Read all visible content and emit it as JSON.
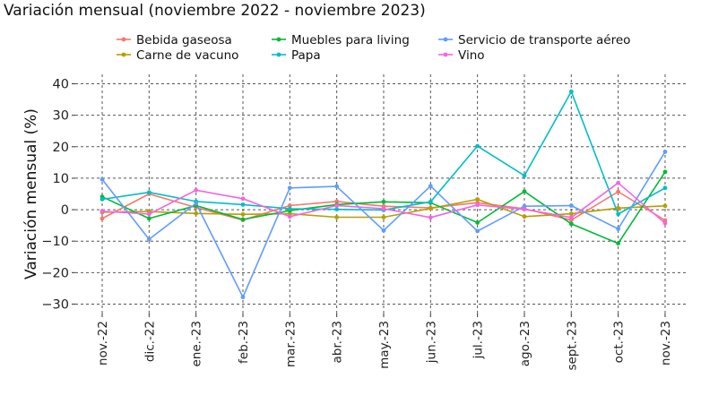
{
  "chart_data": {
    "type": "line",
    "title": "Variación mensual (noviembre 2022 - noviembre 2023)",
    "xlabel": "",
    "ylabel": "Variación mensual (%)",
    "ylim": [
      -33,
      43
    ],
    "yticks": [
      40,
      30,
      20,
      10,
      0,
      -10,
      -20,
      -30
    ],
    "ytick_labels": [
      "40",
      "30",
      "20",
      "10",
      "0",
      "−10",
      "−20",
      "−30"
    ],
    "grid": true,
    "legend_position": "top",
    "categories": [
      "nov.-22",
      "dic.-22",
      "ene.-23",
      "feb.-23",
      "mar.-23",
      "abr.-23",
      "may.-23",
      "jun.-23",
      "jul.-23",
      "ago.-23",
      "sept.-23",
      "oct.-23",
      "nov.-23"
    ],
    "series": [
      {
        "name": "Bebida gaseosa",
        "color": "#F8766D",
        "values": [
          -2.8,
          5.0,
          0.7,
          -3.3,
          1.3,
          2.6,
          1.1,
          0.6,
          2.2,
          0.3,
          -3.3,
          5.7,
          -3.4
        ]
      },
      {
        "name": "Carne de vacuno",
        "color": "#B79F00",
        "values": [
          -0.8,
          -0.6,
          -1.2,
          -1.5,
          -1.3,
          -2.4,
          -2.4,
          0.4,
          3.3,
          -2.2,
          -1.3,
          0.5,
          1.2
        ]
      },
      {
        "name": "Muebles para living",
        "color": "#00BA38",
        "values": [
          4.1,
          -2.8,
          1.3,
          -3.1,
          -0.3,
          1.6,
          2.5,
          2.2,
          -4.1,
          5.8,
          -4.5,
          -10.7,
          12.0
        ]
      },
      {
        "name": "Papa",
        "color": "#00BFC4",
        "values": [
          3.3,
          5.5,
          2.6,
          1.6,
          0.3,
          0.1,
          -0.1,
          2.5,
          20.2,
          10.8,
          37.5,
          -1.4,
          6.9
        ]
      },
      {
        "name": "Servicio de transporte aéreo",
        "color": "#619CFF",
        "values": [
          9.6,
          -9.4,
          2.0,
          -27.8,
          6.9,
          7.4,
          -6.6,
          7.5,
          -6.8,
          1.1,
          1.3,
          -6.1,
          18.4
        ]
      },
      {
        "name": "Vino",
        "color": "#F564E3",
        "values": [
          -0.5,
          -1.4,
          6.2,
          3.5,
          -2.2,
          1.3,
          0.3,
          -2.5,
          1.5,
          0.1,
          -2.5,
          8.5,
          -4.3
        ]
      }
    ]
  }
}
